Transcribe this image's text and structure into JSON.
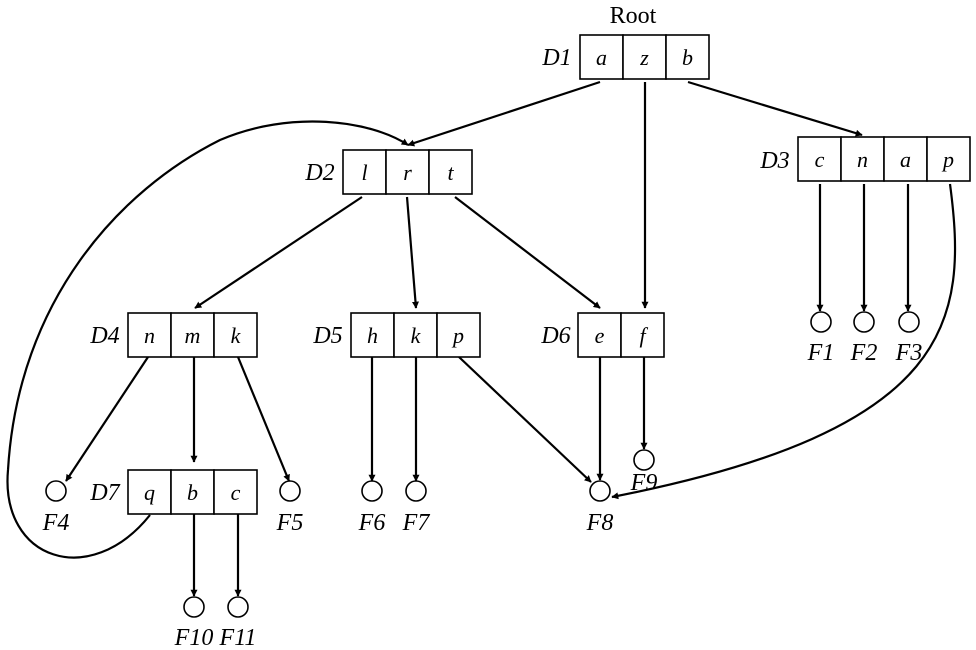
{
  "root_label": "Root",
  "directories": [
    {
      "id": "D1",
      "label": "D1",
      "entries": [
        "a",
        "z",
        "b"
      ]
    },
    {
      "id": "D2",
      "label": "D2",
      "entries": [
        "l",
        "r",
        "t"
      ]
    },
    {
      "id": "D3",
      "label": "D3",
      "entries": [
        "c",
        "n",
        "a",
        "p"
      ]
    },
    {
      "id": "D4",
      "label": "D4",
      "entries": [
        "n",
        "m",
        "k"
      ]
    },
    {
      "id": "D5",
      "label": "D5",
      "entries": [
        "h",
        "k",
        "p"
      ]
    },
    {
      "id": "D6",
      "label": "D6",
      "entries": [
        "e",
        "f"
      ]
    },
    {
      "id": "D7",
      "label": "D7",
      "entries": [
        "q",
        "b",
        "c"
      ]
    }
  ],
  "files": [
    {
      "id": "F1",
      "label": "F1"
    },
    {
      "id": "F2",
      "label": "F2"
    },
    {
      "id": "F3",
      "label": "F3"
    },
    {
      "id": "F4",
      "label": "F4"
    },
    {
      "id": "F5",
      "label": "F5"
    },
    {
      "id": "F6",
      "label": "F6"
    },
    {
      "id": "F7",
      "label": "F7"
    },
    {
      "id": "F8",
      "label": "F8"
    },
    {
      "id": "F9",
      "label": "F9"
    },
    {
      "id": "F10",
      "label": "F10"
    },
    {
      "id": "F11",
      "label": "F11"
    }
  ],
  "links": [
    {
      "from": "D1.a",
      "to": "D2"
    },
    {
      "from": "D1.z",
      "to": "D6"
    },
    {
      "from": "D1.b",
      "to": "D3"
    },
    {
      "from": "D2.l",
      "to": "D4"
    },
    {
      "from": "D2.r",
      "to": "D5"
    },
    {
      "from": "D2.t",
      "to": "D6"
    },
    {
      "from": "D3.c",
      "to": "F1"
    },
    {
      "from": "D3.n",
      "to": "F2"
    },
    {
      "from": "D3.a",
      "to": "F3"
    },
    {
      "from": "D3.p",
      "to": "F8"
    },
    {
      "from": "D4.n",
      "to": "F4"
    },
    {
      "from": "D4.m",
      "to": "D7"
    },
    {
      "from": "D4.k",
      "to": "F5"
    },
    {
      "from": "D5.h",
      "to": "F6"
    },
    {
      "from": "D5.k",
      "to": "F7"
    },
    {
      "from": "D5.p",
      "to": "F8"
    },
    {
      "from": "D6.e",
      "to": "F8"
    },
    {
      "from": "D6.f",
      "to": "F9"
    },
    {
      "from": "D7.q",
      "to": "D2"
    },
    {
      "from": "D7.b",
      "to": "F10"
    },
    {
      "from": "D7.c",
      "to": "F11"
    }
  ]
}
